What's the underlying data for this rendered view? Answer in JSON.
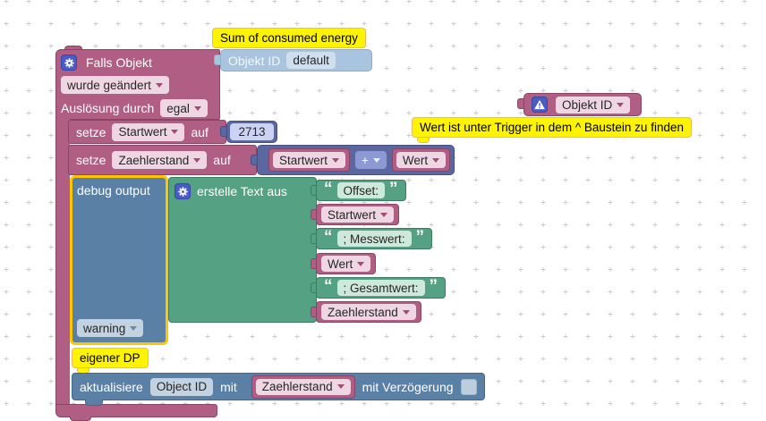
{
  "comments": {
    "sum": "Sum of consumed energy",
    "trigger_hint": "Wert ist unter Trigger in dem ^ Baustein zu finden",
    "own_dp": "eigener DP"
  },
  "trigger_block": {
    "title": "Falls Objekt",
    "event": "wurde geändert",
    "trigger_by_label": "Auslösung durch",
    "trigger_by_value": "egal",
    "object_label": "Objekt ID",
    "object_value": "default"
  },
  "warning_block": {
    "object_label": "Objekt ID"
  },
  "set_startwert": {
    "keyword": "setze",
    "variable": "Startwert",
    "to_label": "auf",
    "value": "2713"
  },
  "set_zaehlerstand": {
    "keyword": "setze",
    "variable": "Zaehlerstand",
    "to_label": "auf",
    "left": "Startwert",
    "operator": "+",
    "right": "Wert"
  },
  "debug_block": {
    "label": "debug output",
    "level": "warning"
  },
  "text_join": {
    "label": "erstelle Text aus",
    "open_quote": "“",
    "close_quote": "”",
    "items": [
      {
        "kind": "text",
        "value": "Offset:"
      },
      {
        "kind": "variable",
        "value": "Startwert"
      },
      {
        "kind": "text",
        "value": "; Messwert:"
      },
      {
        "kind": "variable",
        "value": "Wert"
      },
      {
        "kind": "text",
        "value": "; Gesamtwert:"
      },
      {
        "kind": "variable",
        "value": "Zaehlerstand"
      }
    ]
  },
  "update_block": {
    "keyword": "aktualisiere",
    "object_field": "Object ID",
    "with_label": "mit",
    "variable": "Zaehlerstand",
    "delay_label": "mit Verzögerung"
  },
  "colors": {
    "trigger_magenta": "#b05e83",
    "control_steel_blue": "#5b80a5",
    "math_royal_blue": "#5b67a1",
    "text_green": "#55a184",
    "object_light_blue": "#a9c4de",
    "comment_yellow": "#fdf303",
    "selection_yellow": "#fcc700"
  }
}
